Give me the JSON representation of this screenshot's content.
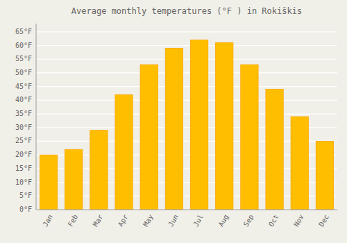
{
  "chart_data": {
    "type": "bar",
    "title": "Average monthly temperatures (°F ) in Rokiškis",
    "categories": [
      "Jan",
      "Feb",
      "Mar",
      "Apr",
      "May",
      "Jun",
      "Jul",
      "Aug",
      "Sep",
      "Oct",
      "Nov",
      "Dec"
    ],
    "values": [
      20,
      22,
      29,
      42,
      53,
      59,
      62,
      61,
      53,
      44,
      34,
      25
    ],
    "color": "#FFBF00",
    "ylim": [
      0,
      68
    ],
    "yticks": [
      {
        "value": 0,
        "label": "0°F"
      },
      {
        "value": 5,
        "label": "5°F"
      },
      {
        "value": 10,
        "label": "10°F"
      },
      {
        "value": 15,
        "label": "15°F"
      },
      {
        "value": 20,
        "label": "20°F"
      },
      {
        "value": 25,
        "label": "25°F"
      },
      {
        "value": 30,
        "label": "30°F"
      },
      {
        "value": 35,
        "label": "35°F"
      },
      {
        "value": 40,
        "label": "40°F"
      },
      {
        "value": 45,
        "label": "45°F"
      },
      {
        "value": 50,
        "label": "50°F"
      },
      {
        "value": 55,
        "label": "55°F"
      },
      {
        "value": 60,
        "label": "60°F"
      },
      {
        "value": 65,
        "label": "65°F"
      }
    ],
    "grid": true
  }
}
